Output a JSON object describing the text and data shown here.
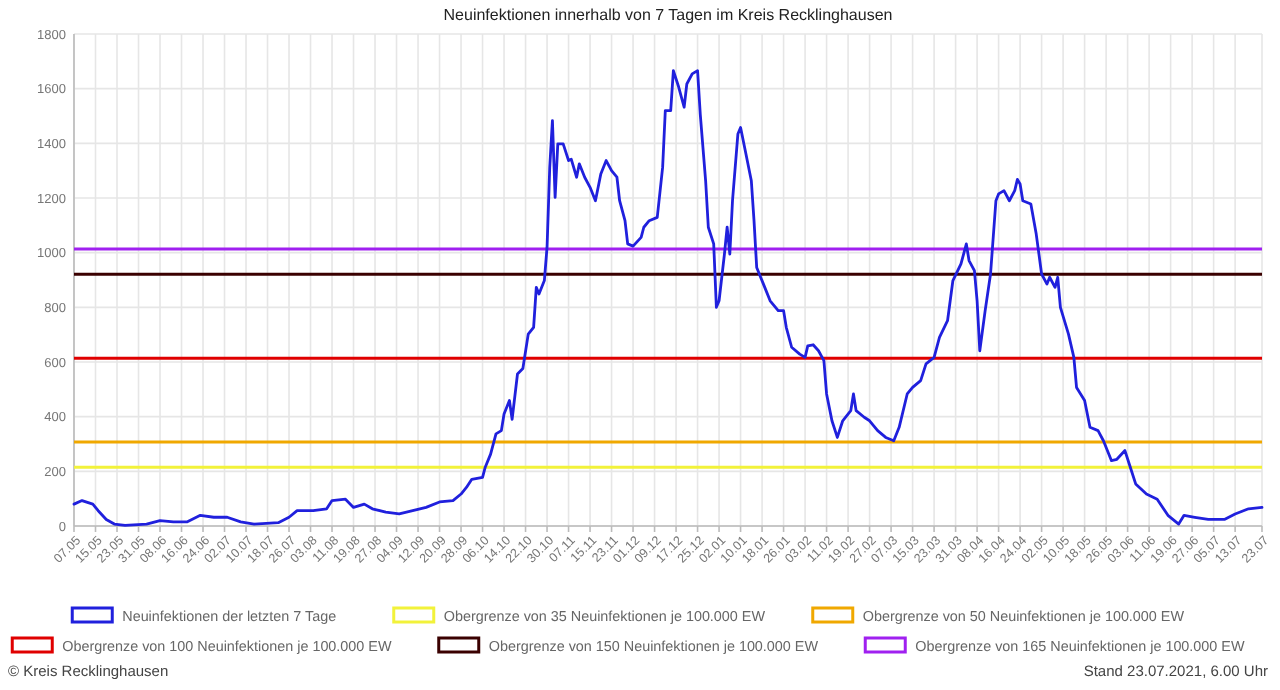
{
  "chart_data": {
    "type": "line",
    "title": "Neuinfektionen innerhalb von 7 Tagen im Kreis Recklinghausen",
    "x": [
      "2020-05-07",
      "2020-05-10",
      "2020-05-14",
      "2020-05-16",
      "2020-05-19",
      "2020-05-22",
      "2020-05-26",
      "2020-06-03",
      "2020-06-08",
      "2020-06-13",
      "2020-06-18",
      "2020-06-23",
      "2020-06-28",
      "2020-07-03",
      "2020-07-08",
      "2020-07-13",
      "2020-07-22",
      "2020-07-26",
      "2020-07-29",
      "2020-08-04",
      "2020-08-09",
      "2020-08-11",
      "2020-08-16",
      "2020-08-19",
      "2020-08-23",
      "2020-08-26",
      "2020-08-31",
      "2020-09-05",
      "2020-09-10",
      "2020-09-15",
      "2020-09-20",
      "2020-09-25",
      "2020-09-28",
      "2020-09-30",
      "2020-10-02",
      "2020-10-06",
      "2020-10-07",
      "2020-10-09",
      "2020-10-11",
      "2020-10-13",
      "2020-10-14",
      "2020-10-16",
      "2020-10-17",
      "2020-10-19",
      "2020-10-21",
      "2020-10-23",
      "2020-10-25",
      "2020-10-26",
      "2020-10-27",
      "2020-10-29",
      "2020-10-30",
      "2020-10-31",
      "2020-11-01",
      "2020-11-02",
      "2020-11-03",
      "2020-11-05",
      "2020-11-07",
      "2020-11-08",
      "2020-11-10",
      "2020-11-11",
      "2020-11-13",
      "2020-11-15",
      "2020-11-17",
      "2020-11-19",
      "2020-11-21",
      "2020-11-23",
      "2020-11-25",
      "2020-11-26",
      "2020-11-28",
      "2020-11-29",
      "2020-12-01",
      "2020-12-04",
      "2020-12-05",
      "2020-12-07",
      "2020-12-10",
      "2020-12-12",
      "2020-12-13",
      "2020-12-15",
      "2020-12-16",
      "2020-12-18",
      "2020-12-20",
      "2020-12-21",
      "2020-12-23",
      "2020-12-25",
      "2020-12-26",
      "2020-12-28",
      "2020-12-29",
      "2020-12-31",
      "2021-01-01",
      "2021-01-02",
      "2021-01-04",
      "2021-01-05",
      "2021-01-06",
      "2021-01-07",
      "2021-01-09",
      "2021-01-10",
      "2021-01-12",
      "2021-01-14",
      "2021-01-15",
      "2021-01-16",
      "2021-01-19",
      "2021-01-21",
      "2021-01-24",
      "2021-01-26",
      "2021-01-27",
      "2021-01-29",
      "2021-02-01",
      "2021-02-03",
      "2021-02-04",
      "2021-02-06",
      "2021-02-08",
      "2021-02-10",
      "2021-02-11",
      "2021-02-13",
      "2021-02-15",
      "2021-02-17",
      "2021-02-20",
      "2021-02-21",
      "2021-02-22",
      "2021-02-25",
      "2021-02-27",
      "2021-03-02",
      "2021-03-05",
      "2021-03-08",
      "2021-03-10",
      "2021-03-13",
      "2021-03-15",
      "2021-03-18",
      "2021-03-20",
      "2021-03-23",
      "2021-03-25",
      "2021-03-28",
      "2021-03-30",
      "2021-04-02",
      "2021-04-04",
      "2021-04-05",
      "2021-04-07",
      "2021-04-08",
      "2021-04-09",
      "2021-04-11",
      "2021-04-13",
      "2021-04-15",
      "2021-04-16",
      "2021-04-18",
      "2021-04-20",
      "2021-04-22",
      "2021-04-23",
      "2021-04-24",
      "2021-04-25",
      "2021-04-28",
      "2021-04-30",
      "2021-05-02",
      "2021-05-04",
      "2021-05-05",
      "2021-05-07",
      "2021-05-08",
      "2021-05-09",
      "2021-05-12",
      "2021-05-14",
      "2021-05-15",
      "2021-05-18",
      "2021-05-20",
      "2021-05-23",
      "2021-05-25",
      "2021-05-28",
      "2021-05-30",
      "2021-06-02",
      "2021-06-04",
      "2021-06-06",
      "2021-06-10",
      "2021-06-14",
      "2021-06-18",
      "2021-06-22",
      "2021-06-24",
      "2021-06-28",
      "2021-07-03",
      "2021-07-09",
      "2021-07-13",
      "2021-07-18",
      "2021-07-23"
    ],
    "series": [
      {
        "name": "Neuinfektionen der letzten 7 Tage",
        "color": "#2020dd",
        "values": [
          80,
          93,
          80,
          56,
          24,
          7,
          2,
          7,
          20,
          15,
          15,
          39,
          32,
          32,
          15,
          7,
          12,
          32,
          56,
          56,
          63,
          93,
          98,
          68,
          80,
          63,
          51,
          44,
          56,
          68,
          88,
          93,
          117,
          141,
          171,
          178,
          215,
          263,
          337,
          349,
          410,
          459,
          390,
          556,
          576,
          702,
          727,
          873,
          849,
          898,
          1020,
          1312,
          1483,
          1202,
          1398,
          1398,
          1337,
          1342,
          1276,
          1325,
          1276,
          1239,
          1190,
          1288,
          1337,
          1300,
          1276,
          1190,
          1117,
          1032,
          1024,
          1056,
          1093,
          1117,
          1129,
          1312,
          1520,
          1520,
          1666,
          1605,
          1532,
          1617,
          1654,
          1666,
          1507,
          1263,
          1093,
          1032,
          800,
          824,
          995,
          1093,
          995,
          1190,
          1434,
          1458,
          1361,
          1263,
          1117,
          946,
          873,
          824,
          788,
          788,
          727,
          654,
          629,
          617,
          659,
          663,
          641,
          605,
          483,
          385,
          324,
          385,
          422,
          483,
          422,
          398,
          385,
          349,
          324,
          312,
          361,
          483,
          507,
          532,
          593,
          617,
          690,
          751,
          898,
          959,
          1032,
          971,
          934,
          824,
          641,
          788,
          922,
          1190,
          1215,
          1227,
          1190,
          1227,
          1268,
          1251,
          1190,
          1178,
          1068,
          922,
          885,
          910,
          873,
          910,
          800,
          702,
          617,
          507,
          459,
          361,
          349,
          312,
          239,
          244,
          276,
          215,
          154,
          117,
          98,
          39,
          7,
          39,
          32,
          24,
          24,
          44,
          63,
          68
        ]
      }
    ],
    "xlim": [
      "2020-05-07",
      "2021-07-23"
    ],
    "xticks": [
      {
        "value": "2020-05-07",
        "label": "07.05"
      },
      {
        "value": "2020-05-15",
        "label": "15.05"
      },
      {
        "value": "2020-05-23",
        "label": "23.05"
      },
      {
        "value": "2020-05-31",
        "label": "31.05"
      },
      {
        "value": "2020-06-08",
        "label": "08.06"
      },
      {
        "value": "2020-06-16",
        "label": "16.06"
      },
      {
        "value": "2020-06-24",
        "label": "24.06"
      },
      {
        "value": "2020-07-02",
        "label": "02.07"
      },
      {
        "value": "2020-07-10",
        "label": "10.07"
      },
      {
        "value": "2020-07-18",
        "label": "18.07"
      },
      {
        "value": "2020-07-26",
        "label": "26.07"
      },
      {
        "value": "2020-08-03",
        "label": "03.08"
      },
      {
        "value": "2020-08-11",
        "label": "11.08"
      },
      {
        "value": "2020-08-19",
        "label": "19.08"
      },
      {
        "value": "2020-08-27",
        "label": "27.08"
      },
      {
        "value": "2020-09-04",
        "label": "04.09"
      },
      {
        "value": "2020-09-12",
        "label": "12.09"
      },
      {
        "value": "2020-09-20",
        "label": "20.09"
      },
      {
        "value": "2020-09-28",
        "label": "28.09"
      },
      {
        "value": "2020-10-06",
        "label": "06.10"
      },
      {
        "value": "2020-10-14",
        "label": "14.10"
      },
      {
        "value": "2020-10-22",
        "label": "22.10"
      },
      {
        "value": "2020-10-30",
        "label": "30.10"
      },
      {
        "value": "2020-11-07",
        "label": "07.11"
      },
      {
        "value": "2020-11-15",
        "label": "15.11"
      },
      {
        "value": "2020-11-23",
        "label": "23.11"
      },
      {
        "value": "2020-12-01",
        "label": "01.12"
      },
      {
        "value": "2020-12-09",
        "label": "09.12"
      },
      {
        "value": "2020-12-17",
        "label": "17.12"
      },
      {
        "value": "2020-12-25",
        "label": "25.12"
      },
      {
        "value": "2021-01-02",
        "label": "02.01"
      },
      {
        "value": "2021-01-10",
        "label": "10.01"
      },
      {
        "value": "2021-01-18",
        "label": "18.01"
      },
      {
        "value": "2021-01-26",
        "label": "26.01"
      },
      {
        "value": "2021-02-03",
        "label": "03.02"
      },
      {
        "value": "2021-02-11",
        "label": "11.02"
      },
      {
        "value": "2021-02-19",
        "label": "19.02"
      },
      {
        "value": "2021-02-27",
        "label": "27.02"
      },
      {
        "value": "2021-03-07",
        "label": "07.03"
      },
      {
        "value": "2021-03-15",
        "label": "15.03"
      },
      {
        "value": "2021-03-23",
        "label": "23.03"
      },
      {
        "value": "2021-03-31",
        "label": "31.03"
      },
      {
        "value": "2021-04-08",
        "label": "08.04"
      },
      {
        "value": "2021-04-16",
        "label": "16.04"
      },
      {
        "value": "2021-04-24",
        "label": "24.04"
      },
      {
        "value": "2021-05-02",
        "label": "02.05"
      },
      {
        "value": "2021-05-10",
        "label": "10.05"
      },
      {
        "value": "2021-05-18",
        "label": "18.05"
      },
      {
        "value": "2021-05-26",
        "label": "26.05"
      },
      {
        "value": "2021-06-03",
        "label": "03.06"
      },
      {
        "value": "2021-06-11",
        "label": "11.06"
      },
      {
        "value": "2021-06-19",
        "label": "19.06"
      },
      {
        "value": "2021-06-27",
        "label": "27.06"
      },
      {
        "value": "2021-07-05",
        "label": "05.07"
      },
      {
        "value": "2021-07-13",
        "label": "13.07"
      },
      {
        "value": "2021-07-23",
        "label": "23.07"
      }
    ],
    "ylim": [
      0,
      1800
    ],
    "yticks": [
      0,
      200,
      400,
      600,
      800,
      1000,
      1200,
      1400,
      1600,
      1800
    ],
    "grid": true,
    "legend": "bottom",
    "ref_lines": [
      {
        "axis": "y",
        "value": 215,
        "label": "Obergrenze von 35 Neuinfektionen je 100.000 EW",
        "color": "#f2f23a"
      },
      {
        "axis": "y",
        "value": 307,
        "label": "Obergrenze von 50 Neuinfektionen je 100.000 EW",
        "color": "#f0a800"
      },
      {
        "axis": "y",
        "value": 614,
        "label": "Obergrenze von 100 Neuinfektionen je 100.000 EW",
        "color": "#e00000"
      },
      {
        "axis": "y",
        "value": 921,
        "label": "Obergrenze von 150 Neuinfektionen je 100.000 EW",
        "color": "#3a0000"
      },
      {
        "axis": "y",
        "value": 1013,
        "label": "Obergrenze von 165 Neuinfektionen je 100.000 EW",
        "color": "#a020f0"
      }
    ],
    "annotations": [
      "© Kreis Recklinghausen",
      "Stand 23.07.2021, 6.00 Uhr"
    ]
  }
}
